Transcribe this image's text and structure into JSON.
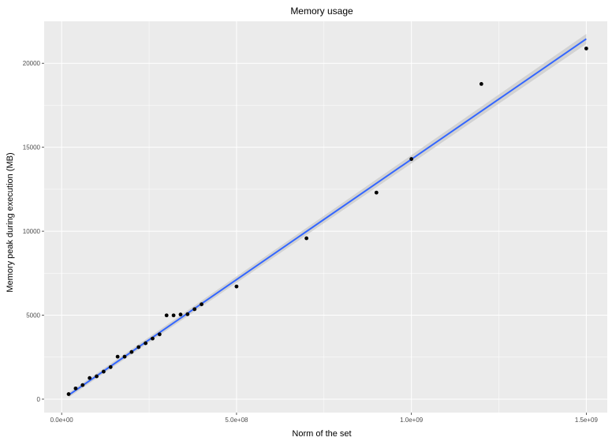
{
  "chart_data": {
    "type": "scatter",
    "title": "Memory usage",
    "xlabel": "Norm of the set",
    "ylabel": "Memory peak during execution (MB)",
    "xlim": [
      -50000000,
      1560000000
    ],
    "ylim": [
      -800,
      22500
    ],
    "x_ticks": [
      0,
      500000000,
      1000000000,
      1500000000
    ],
    "x_tick_labels": [
      "0.0e+00",
      "5.0e+08",
      "1.0e+09",
      "1.5e+09"
    ],
    "y_ticks": [
      0,
      5000,
      10000,
      15000,
      20000
    ],
    "y_tick_labels": [
      "0",
      "5000",
      "10000",
      "15000",
      "20000"
    ],
    "grid": true,
    "points": [
      {
        "x": 20000000,
        "y": 300
      },
      {
        "x": 40000000,
        "y": 640
      },
      {
        "x": 60000000,
        "y": 840
      },
      {
        "x": 80000000,
        "y": 1260
      },
      {
        "x": 100000000,
        "y": 1360
      },
      {
        "x": 120000000,
        "y": 1640
      },
      {
        "x": 140000000,
        "y": 1910
      },
      {
        "x": 160000000,
        "y": 2530
      },
      {
        "x": 180000000,
        "y": 2530
      },
      {
        "x": 200000000,
        "y": 2810
      },
      {
        "x": 220000000,
        "y": 3100
      },
      {
        "x": 240000000,
        "y": 3330
      },
      {
        "x": 260000000,
        "y": 3610
      },
      {
        "x": 280000000,
        "y": 3860
      },
      {
        "x": 300000000,
        "y": 4990
      },
      {
        "x": 320000000,
        "y": 4990
      },
      {
        "x": 340000000,
        "y": 5040
      },
      {
        "x": 360000000,
        "y": 5060
      },
      {
        "x": 380000000,
        "y": 5360
      },
      {
        "x": 400000000,
        "y": 5650
      },
      {
        "x": 500000000,
        "y": 6710
      },
      {
        "x": 700000000,
        "y": 9580
      },
      {
        "x": 900000000,
        "y": 12300
      },
      {
        "x": 1000000000,
        "y": 14300
      },
      {
        "x": 1200000000,
        "y": 18770
      },
      {
        "x": 1500000000,
        "y": 20880
      }
    ],
    "trend_line": {
      "method": "linear",
      "x": [
        20000000,
        1500000000
      ],
      "y": [
        240,
        21450
      ],
      "se_band": [
        [
          20000000,
          100,
          380
        ],
        [
          1500000000,
          21150,
          21750
        ]
      ],
      "color": "#3366ff"
    },
    "colors": {
      "panel_background": "#ebebeb",
      "grid_major": "#ffffff",
      "point": "#000000",
      "line": "#3366ff",
      "band": "#cccccc"
    }
  }
}
